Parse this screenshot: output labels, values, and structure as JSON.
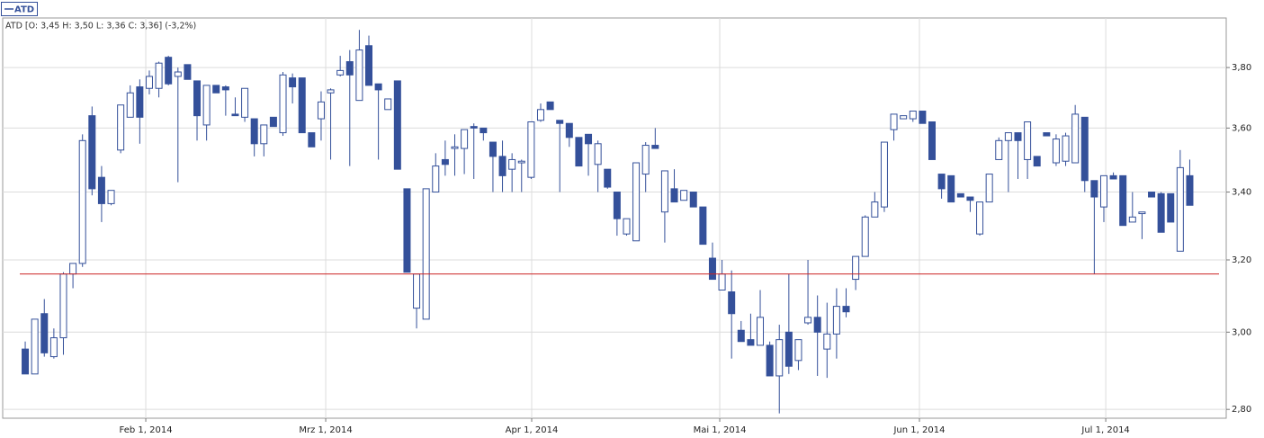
{
  "chart_data": {
    "type": "candlestick",
    "subtitle": "ATD [O: 3,45  H: 3,50  L: 3,36  C: 3,36] (-3,2%)",
    "series": [
      {
        "name": "ATD",
        "color": "#34509a",
        "open": [
          2.955,
          2.89,
          3.05,
          2.935,
          2.985,
          3.16,
          3.19,
          3.64,
          3.445,
          3.365,
          3.53,
          3.635,
          3.735,
          3.73,
          3.73,
          3.835,
          3.77,
          3.81,
          3.755,
          3.61,
          3.74,
          3.735,
          3.645,
          3.635,
          3.63,
          3.55,
          3.635,
          3.585,
          3.765,
          3.765,
          3.585,
          3.63,
          3.715,
          3.775,
          3.82,
          3.69,
          3.875,
          3.745,
          3.66,
          3.755,
          3.41,
          3.065,
          3.035,
          3.4,
          3.5,
          3.535,
          3.535,
          3.605,
          3.6,
          3.555,
          3.51,
          3.47,
          3.49,
          3.445,
          3.625,
          3.685,
          3.625,
          3.615,
          3.57,
          3.58,
          3.485,
          3.47,
          3.4,
          3.275,
          3.255,
          3.455,
          3.545,
          3.34,
          3.41,
          3.375,
          3.4,
          3.355,
          3.205,
          3.115,
          3.11,
          3.005,
          2.98,
          2.965,
          2.965,
          2.885,
          3.0,
          2.925,
          3.025,
          3.04,
          2.955,
          2.995,
          3.07,
          3.145,
          3.21,
          3.325,
          3.355,
          3.595,
          3.63,
          3.63,
          3.655,
          3.62,
          3.455,
          3.45,
          3.395,
          3.385,
          3.275,
          3.37,
          3.5,
          3.56,
          3.585,
          3.5,
          3.51,
          3.585,
          3.49,
          3.495,
          3.49,
          3.635,
          3.435,
          3.355,
          3.45,
          3.45,
          3.31,
          3.335,
          3.4,
          3.395,
          3.395,
          3.225,
          3.45
        ],
        "high": [
          2.975,
          3.035,
          3.09,
          3.01,
          3.165,
          3.19,
          3.58,
          3.67,
          3.48,
          3.405,
          3.675,
          3.74,
          3.76,
          3.79,
          3.82,
          3.84,
          3.8,
          3.81,
          3.755,
          3.74,
          3.74,
          3.74,
          3.7,
          3.73,
          3.63,
          3.61,
          3.635,
          3.785,
          3.78,
          3.765,
          3.585,
          3.72,
          3.73,
          3.84,
          3.86,
          3.93,
          3.91,
          3.745,
          3.695,
          3.755,
          3.41,
          3.16,
          3.41,
          3.52,
          3.56,
          3.58,
          3.595,
          3.615,
          3.6,
          3.555,
          3.56,
          3.52,
          3.5,
          3.62,
          3.68,
          3.685,
          3.625,
          3.615,
          3.57,
          3.58,
          3.56,
          3.47,
          3.4,
          3.32,
          3.49,
          3.555,
          3.6,
          3.465,
          3.47,
          3.405,
          3.4,
          3.355,
          3.25,
          3.2,
          3.17,
          3.03,
          3.05,
          3.115,
          2.975,
          3.02,
          3.16,
          2.98,
          3.2,
          3.1,
          3.08,
          3.12,
          3.12,
          3.21,
          3.33,
          3.4,
          3.555,
          3.645,
          3.64,
          3.655,
          3.655,
          3.62,
          3.455,
          3.45,
          3.395,
          3.385,
          3.37,
          3.455,
          3.57,
          3.585,
          3.585,
          3.62,
          3.51,
          3.585,
          3.58,
          3.585,
          3.675,
          3.635,
          3.435,
          3.45,
          3.46,
          3.45,
          3.4,
          3.34,
          3.4,
          3.4,
          3.395,
          3.53,
          3.5
        ],
        "low": [
          2.89,
          2.89,
          2.935,
          2.93,
          2.94,
          3.12,
          3.18,
          3.39,
          3.31,
          3.36,
          3.52,
          3.635,
          3.55,
          3.71,
          3.7,
          3.74,
          3.43,
          3.76,
          3.56,
          3.56,
          3.715,
          3.64,
          3.64,
          3.62,
          3.51,
          3.51,
          3.605,
          3.575,
          3.68,
          3.585,
          3.54,
          3.56,
          3.5,
          3.77,
          3.48,
          3.69,
          3.74,
          3.5,
          3.66,
          3.47,
          3.165,
          3.01,
          3.035,
          3.4,
          3.45,
          3.45,
          3.455,
          3.44,
          3.56,
          3.4,
          3.4,
          3.4,
          3.4,
          3.44,
          3.62,
          3.66,
          3.4,
          3.54,
          3.48,
          3.45,
          3.4,
          3.41,
          3.27,
          3.27,
          3.255,
          3.4,
          3.535,
          3.25,
          3.37,
          3.375,
          3.355,
          3.245,
          3.145,
          3.115,
          2.93,
          2.975,
          2.965,
          2.965,
          2.885,
          2.79,
          2.89,
          2.9,
          3.02,
          2.885,
          2.88,
          2.93,
          3.04,
          3.115,
          3.21,
          3.325,
          3.34,
          3.56,
          3.63,
          3.62,
          3.615,
          3.5,
          3.38,
          3.37,
          3.385,
          3.34,
          3.27,
          3.37,
          3.5,
          3.4,
          3.44,
          3.44,
          3.48,
          3.575,
          3.48,
          3.48,
          3.49,
          3.4,
          3.16,
          3.31,
          3.44,
          3.3,
          3.31,
          3.26,
          3.385,
          3.28,
          3.31,
          3.225,
          3.36
        ],
        "close": [
          2.89,
          3.035,
          2.945,
          2.985,
          3.16,
          3.19,
          3.56,
          3.41,
          3.365,
          3.405,
          3.675,
          3.715,
          3.635,
          3.77,
          3.815,
          3.745,
          3.785,
          3.76,
          3.64,
          3.74,
          3.715,
          3.725,
          3.64,
          3.73,
          3.55,
          3.61,
          3.605,
          3.775,
          3.735,
          3.585,
          3.54,
          3.685,
          3.725,
          3.79,
          3.775,
          3.86,
          3.74,
          3.725,
          3.695,
          3.47,
          3.165,
          3.16,
          3.41,
          3.48,
          3.485,
          3.54,
          3.595,
          3.6,
          3.585,
          3.51,
          3.45,
          3.5,
          3.495,
          3.62,
          3.66,
          3.66,
          3.615,
          3.57,
          3.48,
          3.55,
          3.55,
          3.415,
          3.32,
          3.32,
          3.49,
          3.545,
          3.535,
          3.465,
          3.37,
          3.405,
          3.355,
          3.245,
          3.145,
          3.16,
          3.05,
          2.975,
          2.965,
          3.04,
          2.885,
          2.98,
          2.91,
          2.98,
          3.04,
          3.0,
          2.995,
          3.07,
          3.055,
          3.21,
          3.325,
          3.37,
          3.555,
          3.645,
          3.64,
          3.655,
          3.615,
          3.5,
          3.41,
          3.37,
          3.385,
          3.375,
          3.37,
          3.455,
          3.56,
          3.585,
          3.56,
          3.62,
          3.48,
          3.575,
          3.565,
          3.575,
          3.645,
          3.435,
          3.385,
          3.45,
          3.44,
          3.3,
          3.325,
          3.34,
          3.385,
          3.28,
          3.31,
          3.475,
          3.36
        ]
      }
    ],
    "hollow_color": "#ffffff",
    "reference_line": {
      "value": 3.16,
      "color": "#cc2222"
    },
    "xlim": [
      -2.36,
      125.82
    ],
    "xticks": [
      {
        "value": 12.63,
        "label": "Feb 1, 2014"
      },
      {
        "value": 31.48,
        "label": "Mrz 1, 2014"
      },
      {
        "value": 53.06,
        "label": "Apr 1, 2014"
      },
      {
        "value": 72.76,
        "label": "Mai 1, 2014"
      },
      {
        "value": 93.68,
        "label": "Jun 1, 2014"
      },
      {
        "value": 113.2,
        "label": "Jul 1, 2014"
      }
    ],
    "ylim": [
      2.778,
      3.972
    ],
    "ylog": true,
    "yticks": [
      {
        "value": 2.8,
        "label": "2,80"
      },
      {
        "value": 3.0,
        "label": "3,00"
      },
      {
        "value": 3.2,
        "label": "3,20"
      },
      {
        "value": 3.4,
        "label": "3,40"
      },
      {
        "value": 3.6,
        "label": "3,60"
      },
      {
        "value": 3.8,
        "label": "3,80"
      }
    ],
    "grid": true
  }
}
